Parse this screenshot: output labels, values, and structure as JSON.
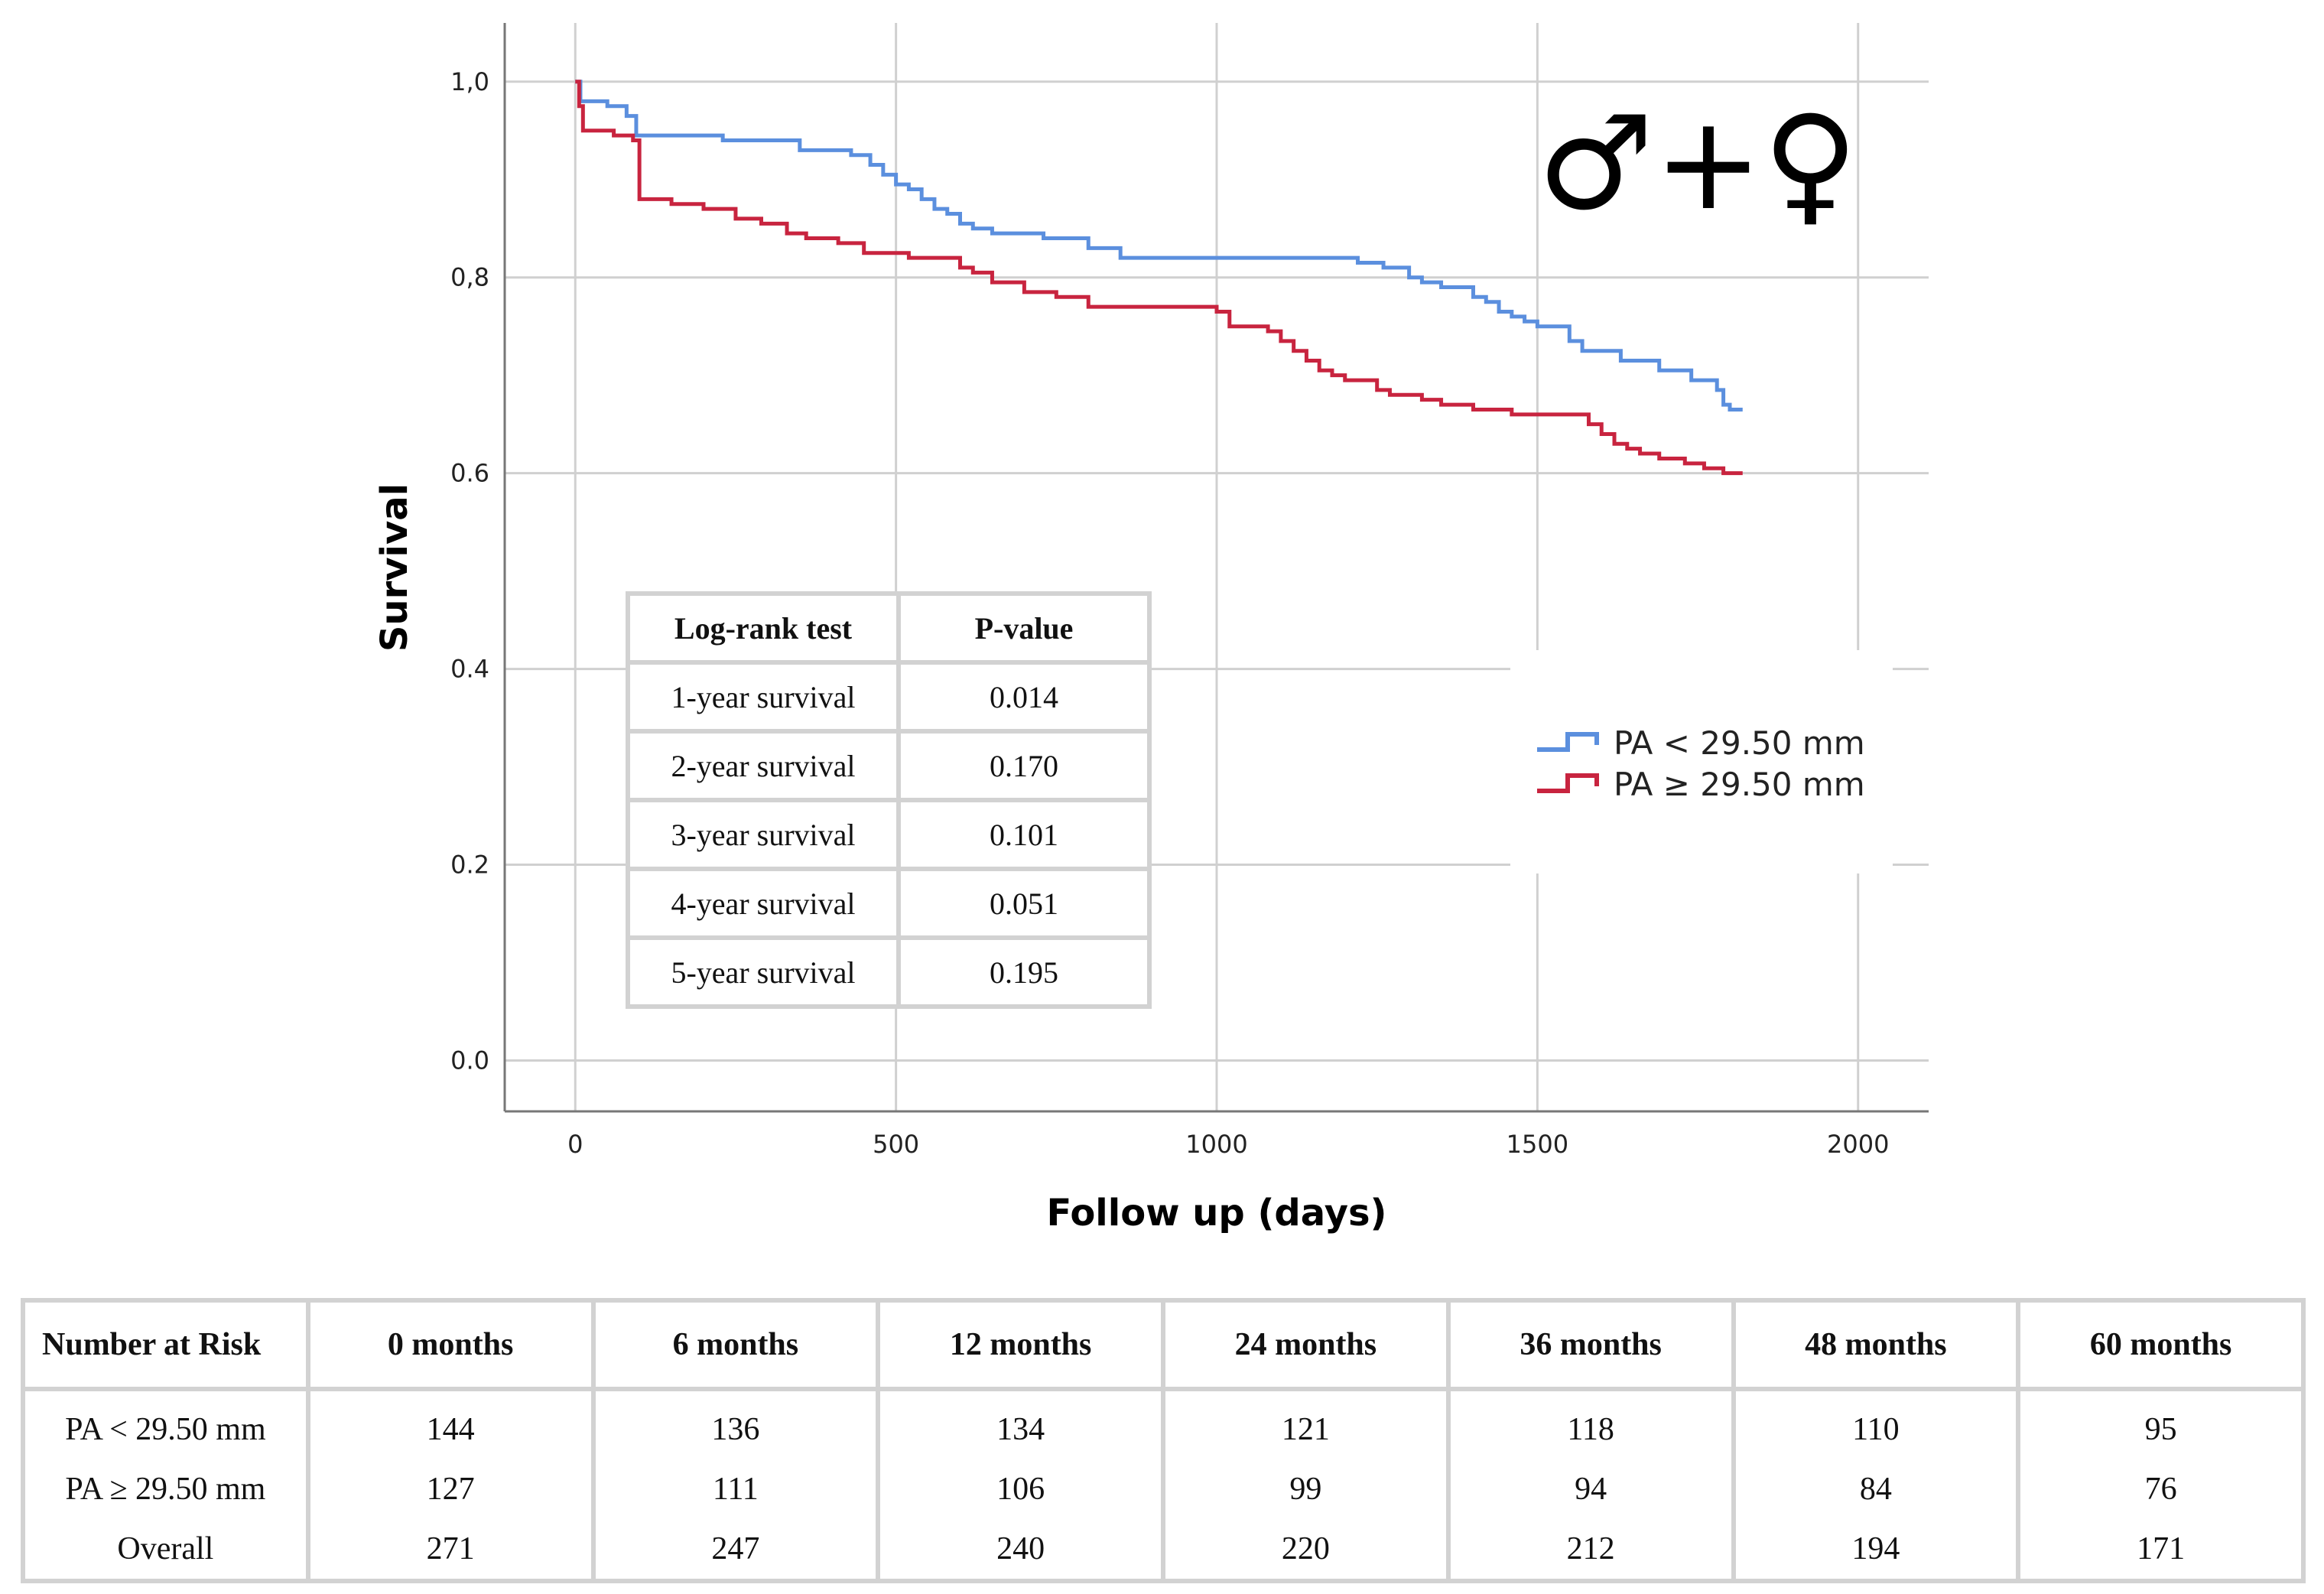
{
  "chart_data": {
    "type": "line",
    "subtype": "kaplan-meier",
    "title": "",
    "xlabel": "Follow up (days)",
    "ylabel": "Survival",
    "xlim": [
      -110,
      2110
    ],
    "ylim": [
      -0.052,
      1.06
    ],
    "xticks": [
      0,
      500,
      1000,
      1500,
      2000
    ],
    "xtick_labels": [
      "0",
      "500",
      "1000",
      "1500",
      "2000"
    ],
    "yticks": [
      0.0,
      0.2,
      0.4,
      0.6,
      0.8,
      1.0
    ],
    "ytick_labels": [
      "0.0",
      "0.2",
      "0.4",
      "0.6",
      "0,8",
      "1,0"
    ],
    "grid": true,
    "legend_position": "right",
    "series": [
      {
        "name": "PA < 29.50 mm",
        "color": "#5b8fde",
        "x": [
          0,
          8,
          50,
          80,
          95,
          230,
          350,
          430,
          460,
          480,
          500,
          520,
          540,
          560,
          580,
          600,
          620,
          650,
          670,
          730,
          800,
          850,
          1000,
          1200,
          1220,
          1260,
          1300,
          1320,
          1350,
          1400,
          1420,
          1440,
          1460,
          1480,
          1500,
          1550,
          1570,
          1630,
          1690,
          1740,
          1780,
          1790,
          1800,
          1820
        ],
        "y": [
          1.0,
          0.98,
          0.975,
          0.965,
          0.945,
          0.94,
          0.93,
          0.925,
          0.915,
          0.905,
          0.895,
          0.89,
          0.88,
          0.87,
          0.865,
          0.855,
          0.85,
          0.845,
          0.845,
          0.84,
          0.83,
          0.82,
          0.82,
          0.82,
          0.815,
          0.81,
          0.8,
          0.795,
          0.79,
          0.78,
          0.775,
          0.765,
          0.76,
          0.755,
          0.75,
          0.735,
          0.725,
          0.715,
          0.705,
          0.695,
          0.685,
          0.67,
          0.665,
          0.665
        ]
      },
      {
        "name": "PA ≥ 29.50 mm",
        "color": "#c8243f",
        "x": [
          0,
          6,
          12,
          60,
          90,
          100,
          150,
          200,
          250,
          290,
          330,
          360,
          410,
          450,
          520,
          560,
          600,
          620,
          650,
          700,
          750,
          800,
          880,
          960,
          1000,
          1020,
          1080,
          1100,
          1120,
          1140,
          1160,
          1180,
          1200,
          1250,
          1270,
          1320,
          1350,
          1400,
          1460,
          1540,
          1580,
          1600,
          1620,
          1640,
          1660,
          1690,
          1730,
          1760,
          1790,
          1820
        ],
        "y": [
          1.0,
          0.975,
          0.95,
          0.945,
          0.94,
          0.88,
          0.875,
          0.87,
          0.86,
          0.855,
          0.845,
          0.84,
          0.835,
          0.825,
          0.82,
          0.82,
          0.81,
          0.805,
          0.795,
          0.785,
          0.78,
          0.77,
          0.77,
          0.77,
          0.765,
          0.75,
          0.745,
          0.735,
          0.725,
          0.715,
          0.705,
          0.7,
          0.695,
          0.685,
          0.68,
          0.675,
          0.67,
          0.665,
          0.66,
          0.66,
          0.65,
          0.64,
          0.63,
          0.625,
          0.62,
          0.615,
          0.61,
          0.605,
          0.6,
          0.6
        ]
      }
    ],
    "annotation_symbol": "♂+♀",
    "logrank_table": {
      "headers": [
        "Log-rank test",
        "P-value"
      ],
      "rows": [
        [
          "1-year survival",
          "0.014"
        ],
        [
          "2-year survival",
          "0.170"
        ],
        [
          "3-year survival",
          "0.101"
        ],
        [
          "4-year survival",
          "0.051"
        ],
        [
          "5-year survival",
          "0.195"
        ]
      ]
    },
    "risk_table": {
      "headers": [
        "Number at Risk",
        "0 months",
        "6 months",
        "12 months",
        "24 months",
        "36 months",
        "48 months",
        "60 months"
      ],
      "rows": [
        [
          "PA < 29.50 mm",
          "144",
          "136",
          "134",
          "121",
          "118",
          "110",
          "95"
        ],
        [
          "PA ≥ 29.50 mm",
          "127",
          "111",
          "106",
          "99",
          "94",
          "84",
          "76"
        ],
        [
          "Overall",
          "271",
          "247",
          "240",
          "220",
          "212",
          "194",
          "171"
        ]
      ]
    }
  }
}
